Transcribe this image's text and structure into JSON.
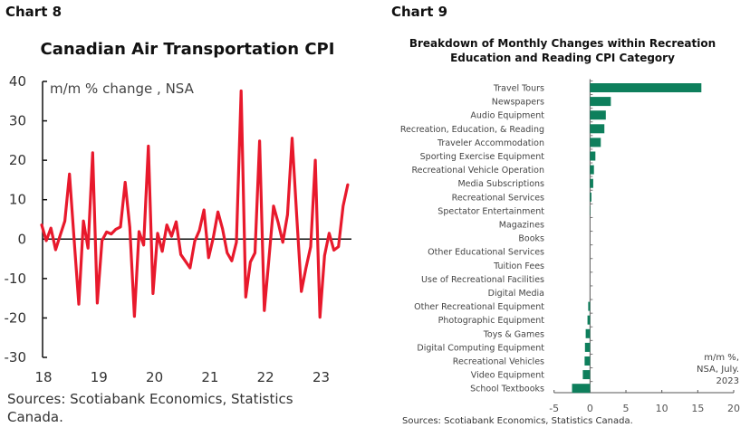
{
  "charts_header": {
    "left_label": "Chart 8",
    "right_label": "Chart 9"
  },
  "chart_data": [
    {
      "type": "line",
      "title": "Canadian Air Transportation CPI",
      "ylabel": "m/m % change , NSA",
      "xlabel": "",
      "ylim": [
        -30,
        40
      ],
      "yticks": [
        40,
        30,
        20,
        10,
        0,
        -10,
        -20,
        -30
      ],
      "xticks": [
        "18",
        "19",
        "20",
        "21",
        "22",
        "23"
      ],
      "x_start": "2018-01",
      "x_end": "2023-07",
      "frequency": "monthly",
      "grid": false,
      "color": "#e8192c",
      "series": [
        {
          "name": "Air Transportation CPI m/m %",
          "values": [
            3.6,
            -0.4,
            2.8,
            -2.7,
            1.0,
            4.6,
            16.5,
            0,
            -16.5,
            4.6,
            -2.3,
            21.9,
            -16.2,
            -0.4,
            1.8,
            1.3,
            2.5,
            3.1,
            14.4,
            3.0,
            -19.6,
            1.9,
            -1.5,
            23.6,
            -13.8,
            1.5,
            -3.1,
            3.6,
            0.7,
            4.4,
            -3.9,
            -5.6,
            -7.3,
            -0.5,
            2.2,
            7.4,
            -4.7,
            0.3,
            6.9,
            2.6,
            -3.5,
            -5.5,
            -0.8,
            37.6,
            -14.7,
            -5.8,
            -3.5,
            24.9,
            -18.1,
            -5.0,
            8.4,
            4.2,
            -0.8,
            6.2,
            25.6,
            5.8,
            -13.3,
            -7.3,
            -1.9,
            20.0,
            -19.8,
            -4.2,
            1.5,
            -2.8,
            -1.9,
            8.4,
            13.8
          ]
        }
      ],
      "source": "Sources: Scotiabank Economics, Statistics Canada."
    },
    {
      "type": "bar",
      "orientation": "horizontal",
      "title": "Breakdown of Monthly Changes within Recreation Education and Reading CPI Category",
      "title_lines": [
        "Breakdown of Monthly Changes within Recreation",
        "Education and Reading CPI Category"
      ],
      "categories": [
        "Travel Tours",
        "Newspapers",
        "Audio Equipment",
        "Recreation, Education, & Reading",
        "Traveler Accommodation",
        "Sporting Exercise Equipment",
        "Recreational Vehicle Operation",
        "Media Subscriptions",
        "Recreational Services",
        "Spectator Entertainment",
        "Magazines",
        "Books",
        "Other Educational Services",
        "Tuition Fees",
        "Use of Recreational Facilities",
        "Digital Media",
        "Other Recreational Equipment",
        "Photographic Equipment",
        "Toys & Games",
        "Digital Computing Equipment",
        "Recreational Vehicles",
        "Video Equipment",
        "School Textbooks"
      ],
      "values": [
        15.5,
        2.9,
        2.2,
        2.0,
        1.5,
        0.75,
        0.55,
        0.45,
        0.2,
        0.05,
        0,
        0,
        0,
        0,
        0,
        0,
        -0.25,
        -0.35,
        -0.6,
        -0.7,
        -0.75,
        -1.0,
        -2.5
      ],
      "xlim": [
        -5,
        20
      ],
      "xticks": [
        -5,
        0,
        5,
        10,
        15,
        20
      ],
      "color": "#0e7f5c",
      "annotation": [
        "m/m %,",
        "NSA, July.",
        "2023"
      ],
      "grid": false,
      "source": "Sources: Scotiabank Economics, Statistics Canada."
    }
  ]
}
